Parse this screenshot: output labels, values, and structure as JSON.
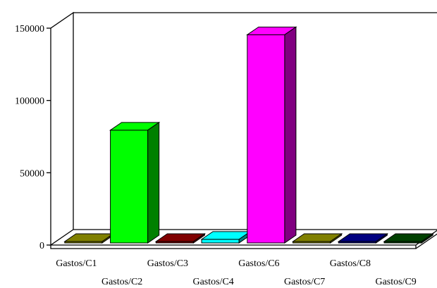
{
  "chart_data": {
    "type": "bar",
    "style": "3d",
    "categories": [
      "Gastos/C1",
      "Gastos/C2",
      "Gastos/C3",
      "Gastos/C4",
      "Gastos/C6",
      "Gastos/C7",
      "Gastos/C8",
      "Gastos/C9"
    ],
    "values": [
      0,
      78000,
      0,
      2500,
      144000,
      0,
      0,
      0
    ],
    "colors": [
      "#808000",
      "#00ff00",
      "#800000",
      "#00ffff",
      "#ff00ff",
      "#808000",
      "#000080",
      "#004000"
    ],
    "side_colors": [
      "#5f5f00",
      "#008000",
      "#5f0000",
      "#008080",
      "#800080",
      "#5f5f00",
      "#00005f",
      "#003000"
    ],
    "y_ticks": [
      0,
      50000,
      100000,
      150000
    ],
    "ylim": [
      0,
      150000
    ],
    "grid": false,
    "legend": "none",
    "title": "",
    "xlabel": "",
    "ylabel": ""
  }
}
